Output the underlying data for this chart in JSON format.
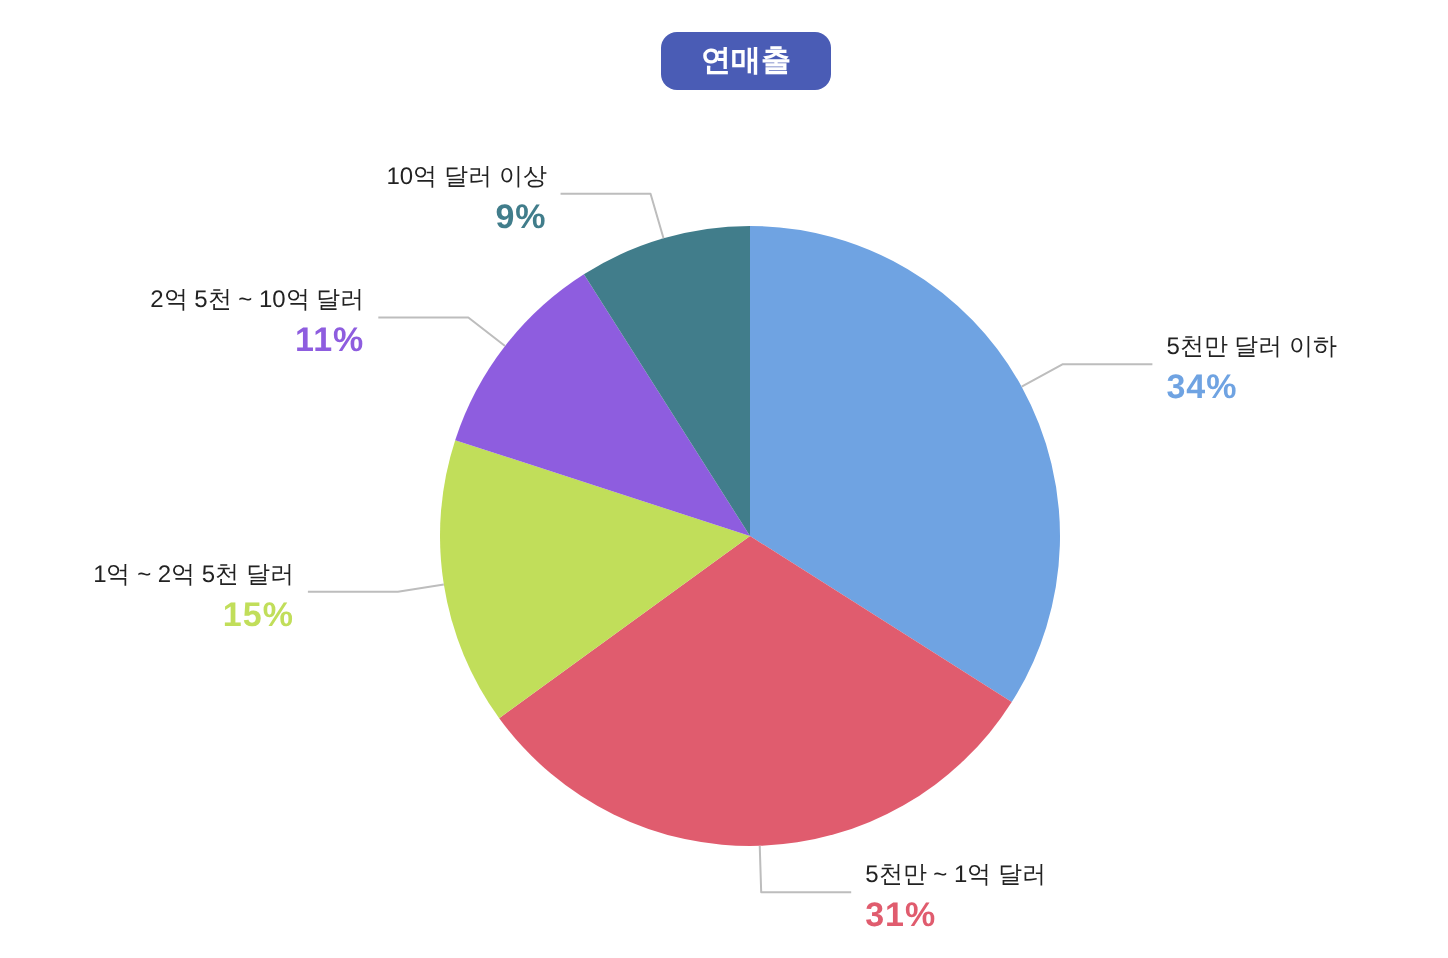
{
  "chart_data": {
    "type": "pie",
    "title": "연매출",
    "categories": [
      "5천만 달러 이하",
      "5천만 ~ 1억 달러",
      "1억 ~ 2억 5천 달러",
      "2억 5천 ~ 10억 달러",
      "10억 달러 이상"
    ],
    "values": [
      34,
      31,
      15,
      11,
      9
    ],
    "colors": [
      "#6fa3e2",
      "#e05c6e",
      "#c1de5a",
      "#8e5ddf",
      "#417d8b"
    ],
    "value_labels": [
      "34%",
      "31%",
      "15%",
      "11%",
      "9%"
    ]
  }
}
